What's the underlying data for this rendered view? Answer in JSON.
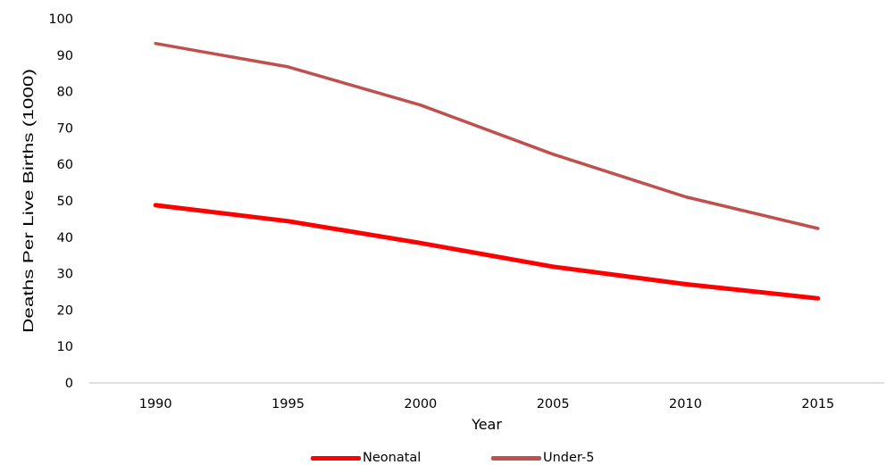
{
  "chart_data": {
    "type": "line",
    "title": "",
    "xlabel": "Year",
    "ylabel": "Deaths Per Live Births (1000)",
    "categories": [
      "1990",
      "1995",
      "2000",
      "2005",
      "2010",
      "2015"
    ],
    "ylim": [
      0,
      100
    ],
    "yticks": [
      "0",
      "10",
      "20",
      "30",
      "40",
      "50",
      "60",
      "70",
      "80",
      "90",
      "100"
    ],
    "grid": false,
    "legend_position": "bottom",
    "series": [
      {
        "name": "Neonatal",
        "values": [
          48.8,
          44.4,
          38.4,
          31.9,
          27.1,
          23.2
        ],
        "color": "#ff0000"
      },
      {
        "name": "Under-5",
        "values": [
          93.2,
          86.8,
          76.3,
          62.8,
          51.1,
          42.4
        ],
        "color": "#c0504d"
      }
    ]
  }
}
